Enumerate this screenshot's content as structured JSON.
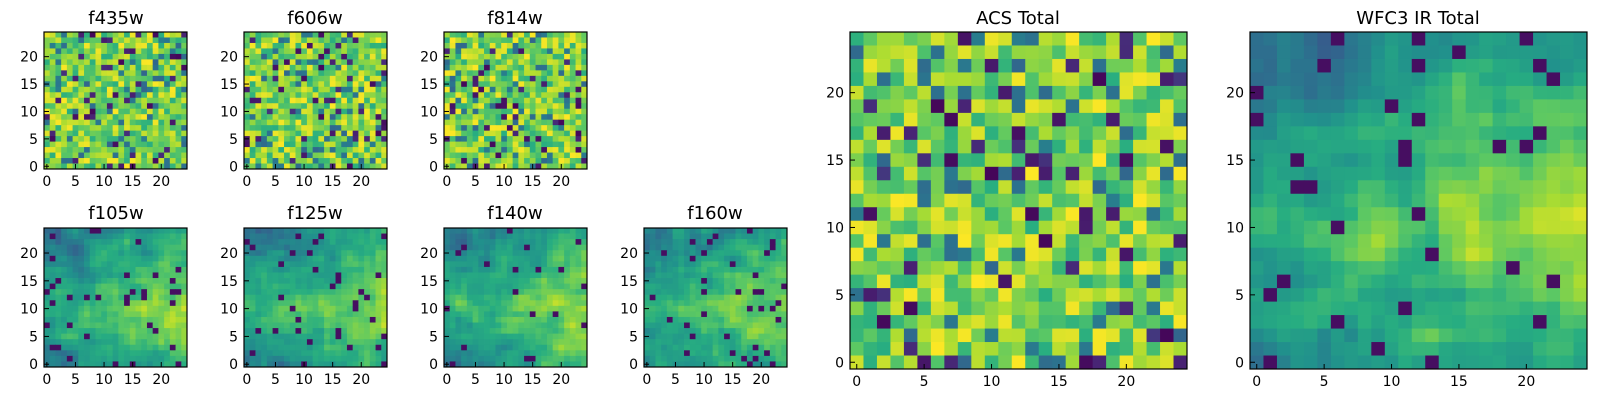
{
  "chart_data": {
    "type": "heatmap",
    "grid_size": 25,
    "value_range": [
      0,
      1
    ],
    "colormap": "viridis",
    "panels": [
      {
        "id": "f435w",
        "title": "f435w",
        "x_ticks": [
          "0",
          "5",
          "10",
          "15",
          "20"
        ],
        "y_ticks": [
          "0",
          "5",
          "10",
          "15",
          "20"
        ],
        "pattern": "noise",
        "seed": 11
      },
      {
        "id": "f606w",
        "title": "f606w",
        "x_ticks": [
          "0",
          "5",
          "10",
          "15",
          "20"
        ],
        "y_ticks": [
          "0",
          "5",
          "10",
          "15",
          "20"
        ],
        "pattern": "noise",
        "seed": 23
      },
      {
        "id": "f814w",
        "title": "f814w",
        "x_ticks": [
          "0",
          "5",
          "10",
          "15",
          "20"
        ],
        "y_ticks": [
          "0",
          "5",
          "10",
          "15",
          "20"
        ],
        "pattern": "noise",
        "seed": 37
      },
      {
        "id": "f105w",
        "title": "f105w",
        "x_ticks": [
          "0",
          "5",
          "10",
          "15",
          "20"
        ],
        "y_ticks": [
          "0",
          "5",
          "10",
          "15",
          "20"
        ],
        "pattern": "smooth",
        "seed": 41
      },
      {
        "id": "f125w",
        "title": "f125w",
        "x_ticks": [
          "0",
          "5",
          "10",
          "15",
          "20"
        ],
        "y_ticks": [
          "0",
          "5",
          "10",
          "15",
          "20"
        ],
        "pattern": "smooth",
        "seed": 53
      },
      {
        "id": "f140w",
        "title": "f140w",
        "x_ticks": [
          "0",
          "5",
          "10",
          "15",
          "20"
        ],
        "y_ticks": [
          "0",
          "5",
          "10",
          "15",
          "20"
        ],
        "pattern": "smooth",
        "seed": 67
      },
      {
        "id": "f160w",
        "title": "f160w",
        "x_ticks": [
          "0",
          "5",
          "10",
          "15",
          "20"
        ],
        "y_ticks": [
          "0",
          "5",
          "10",
          "15",
          "20"
        ],
        "pattern": "smooth",
        "seed": 79
      },
      {
        "id": "acs-total",
        "title": "ACS Total",
        "x_ticks": [
          "0",
          "5",
          "10",
          "15",
          "20"
        ],
        "y_ticks": [
          "0",
          "5",
          "10",
          "15",
          "20"
        ],
        "pattern": "noise",
        "seed": 89
      },
      {
        "id": "wfc3-ir-total",
        "title": "WFC3 IR Total",
        "x_ticks": [
          "0",
          "5",
          "10",
          "15",
          "20"
        ],
        "y_ticks": [
          "0",
          "5",
          "10",
          "15",
          "20"
        ],
        "pattern": "smooth",
        "seed": 97
      }
    ]
  }
}
